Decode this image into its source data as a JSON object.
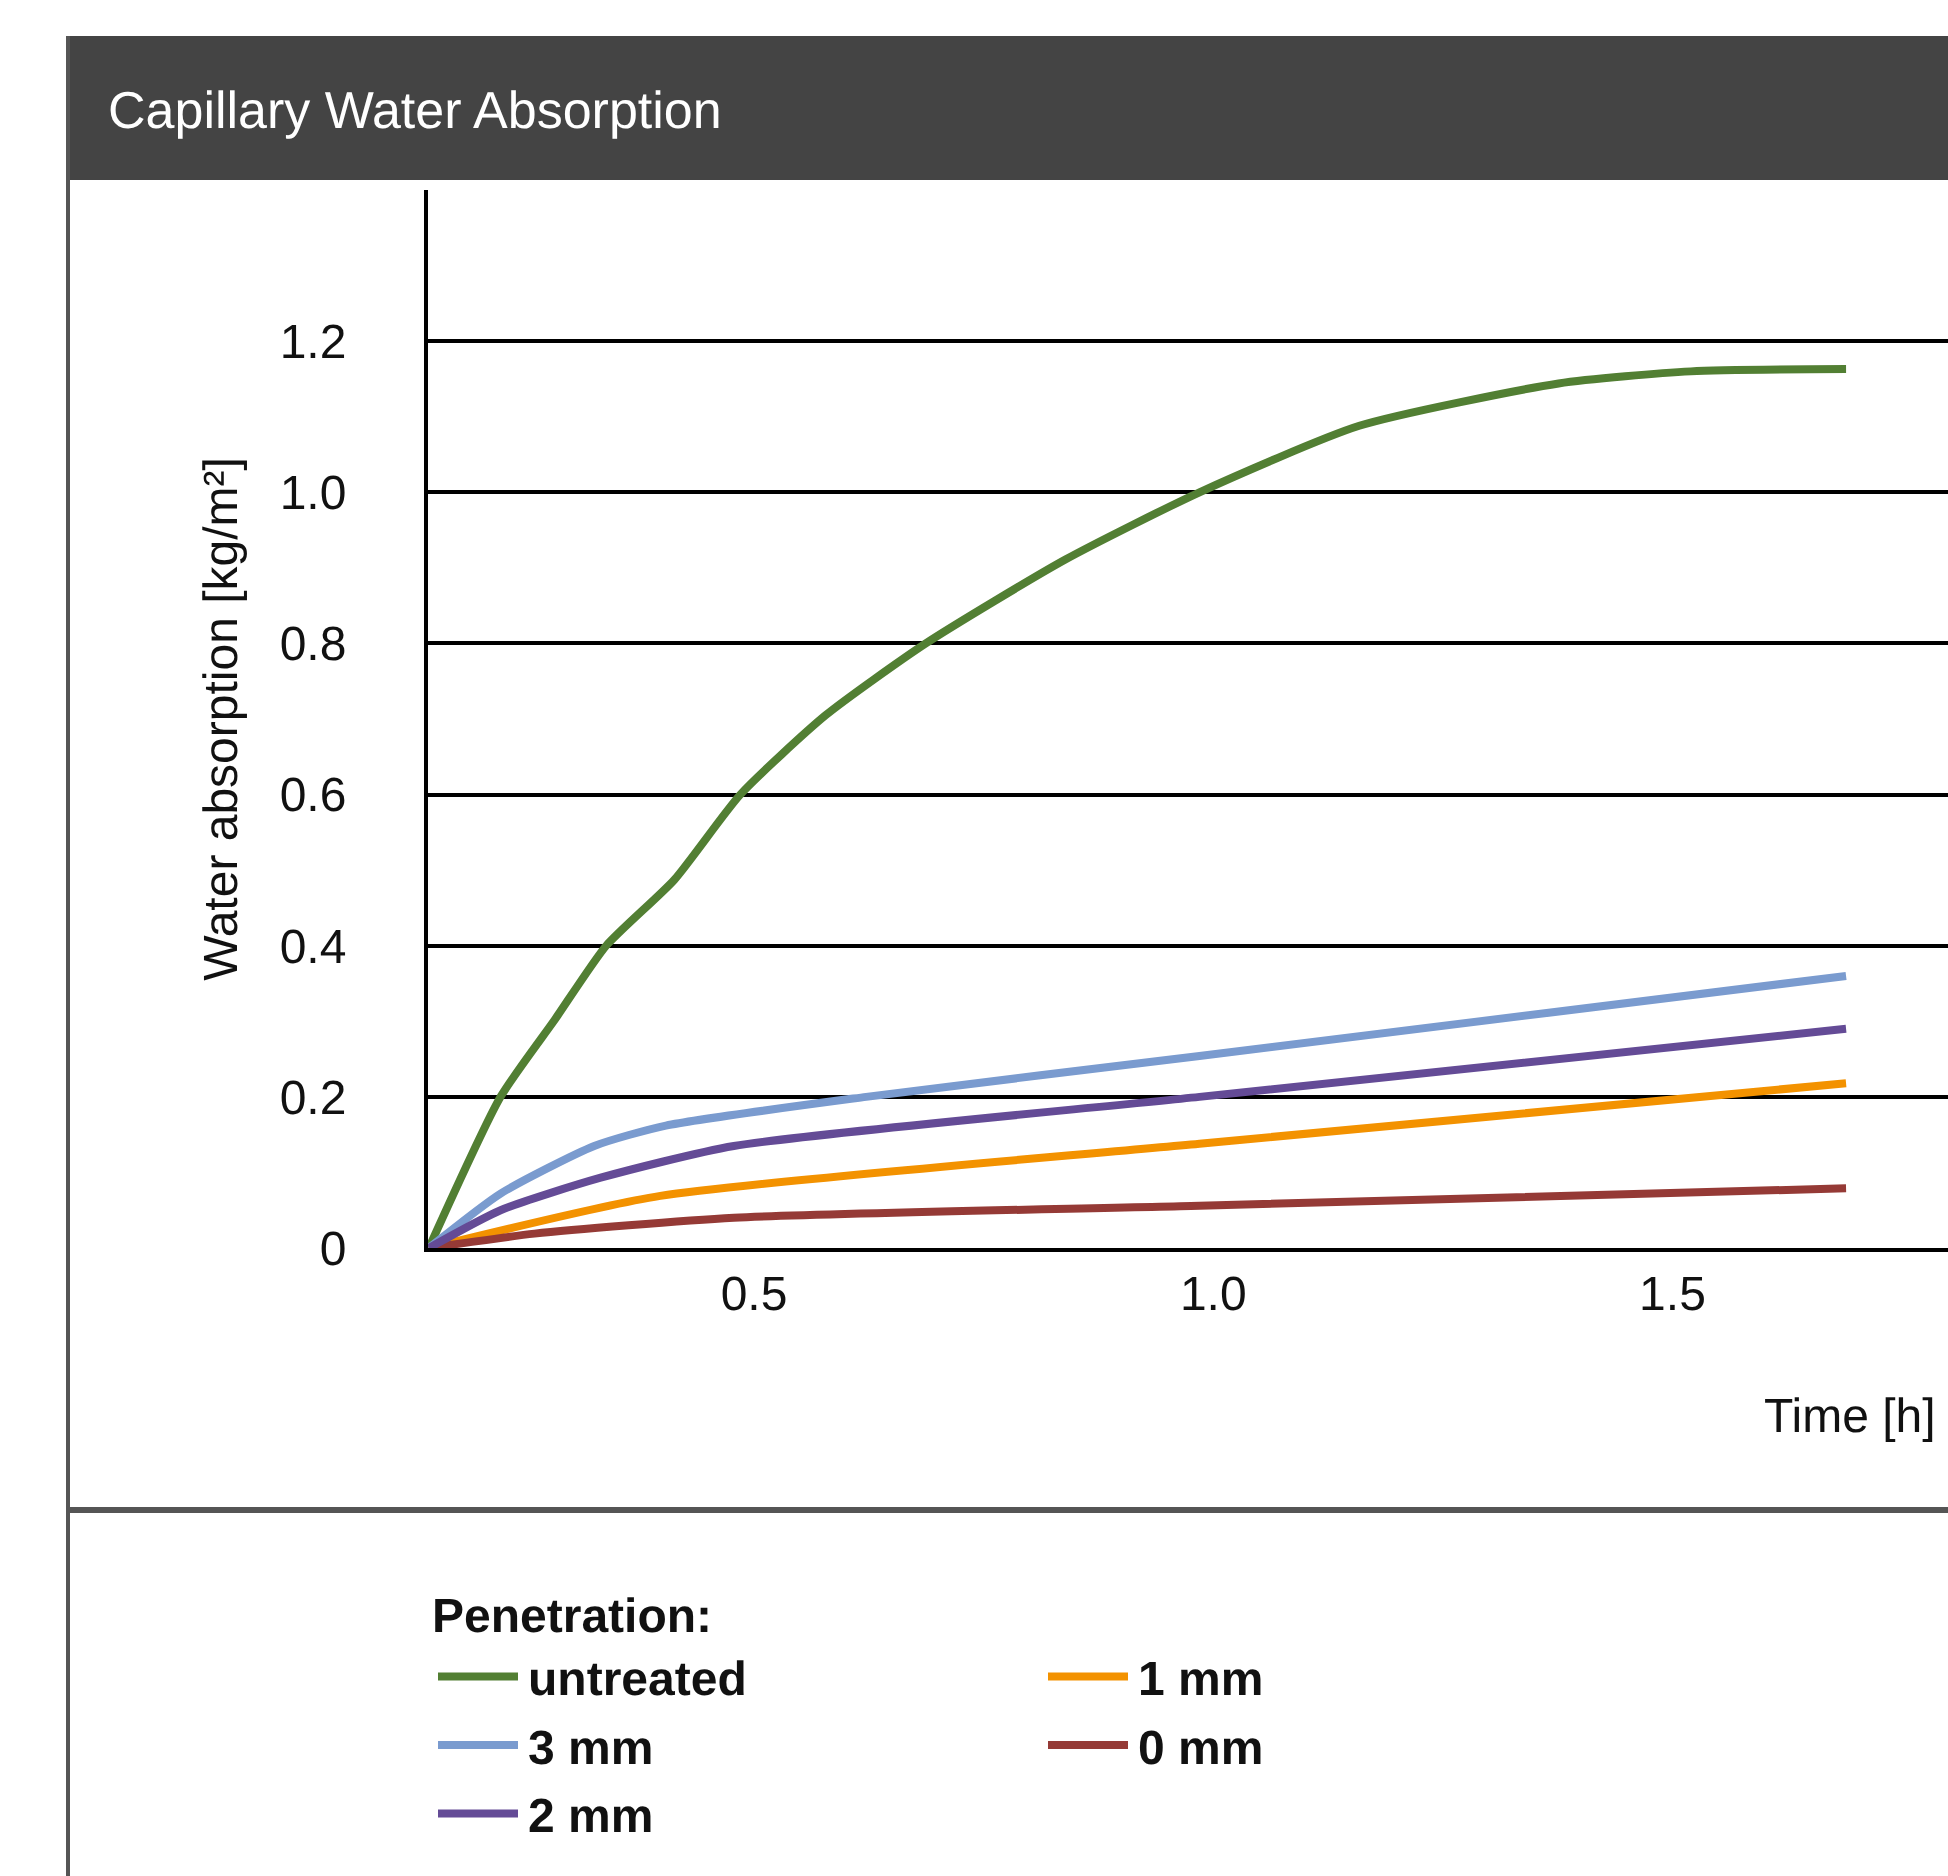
{
  "chart_data": {
    "type": "line",
    "title": "Capillary Water Absorption",
    "xlabel": "Time [h]",
    "ylabel": "Water absorption [kg/m²]",
    "legend_title": "Penetration:",
    "xlim": [
      0.145,
      1.8
    ],
    "xticks": [
      0.5,
      {
        "value": 1.0,
        "label": "1.0"
      },
      1.5
    ],
    "ylim": [
      0,
      1.4
    ],
    "yticks": [
      0,
      {
        "value": 0.2,
        "label": "0.2"
      },
      {
        "value": 0.4,
        "label": "0.4"
      },
      {
        "value": 0.6,
        "label": "0.6"
      },
      {
        "value": 0.8,
        "label": "0.8"
      },
      {
        "value": 1.0,
        "label": "1.0"
      },
      {
        "value": 1.2,
        "label": "1.2"
      }
    ],
    "grid": "y",
    "legend": "bottom",
    "marker": "none",
    "line_style": "solid",
    "series": [
      {
        "name": "untreated",
        "color": "#527f33",
        "x": [
          0.146,
          0.224,
          0.283,
          0.339,
          0.413,
          0.485,
          0.578,
          0.687,
          0.839,
          0.985,
          1.159,
          1.376,
          1.52,
          1.689
        ],
        "values": [
          0,
          0.2,
          0.302,
          0.4,
          0.487,
          0.6,
          0.705,
          0.8,
          0.911,
          1.0,
          1.088,
          1.144,
          1.16,
          1.163
        ]
      },
      {
        "name": "1 mm",
        "color": "#f39200",
        "x": [
          0.146,
          0.398,
          0.985,
          1.689
        ],
        "values": [
          0,
          0.069,
          0.138,
          0.218
        ]
      },
      {
        "name": "3 mm",
        "color": "#7a9bcf",
        "x": [
          0.146,
          0.224,
          0.326,
          0.404,
          0.622,
          0.985,
          1.689
        ],
        "values": [
          0,
          0.072,
          0.135,
          0.162,
          0.2,
          0.254,
          0.36
        ]
      },
      {
        "name": "0 mm",
        "color": "#953a36",
        "x": [
          0.146,
          0.261,
          0.478,
          0.985,
          1.689
        ],
        "values": [
          0,
          0.019,
          0.04,
          0.056,
          0.079
        ]
      },
      {
        "name": "2 mm",
        "color": "#644b96",
        "x": [
          0.146,
          0.224,
          0.333,
          0.478,
          0.985,
          1.689
        ],
        "values": [
          0,
          0.05,
          0.093,
          0.135,
          0.2,
          0.29
        ]
      }
    ]
  }
}
